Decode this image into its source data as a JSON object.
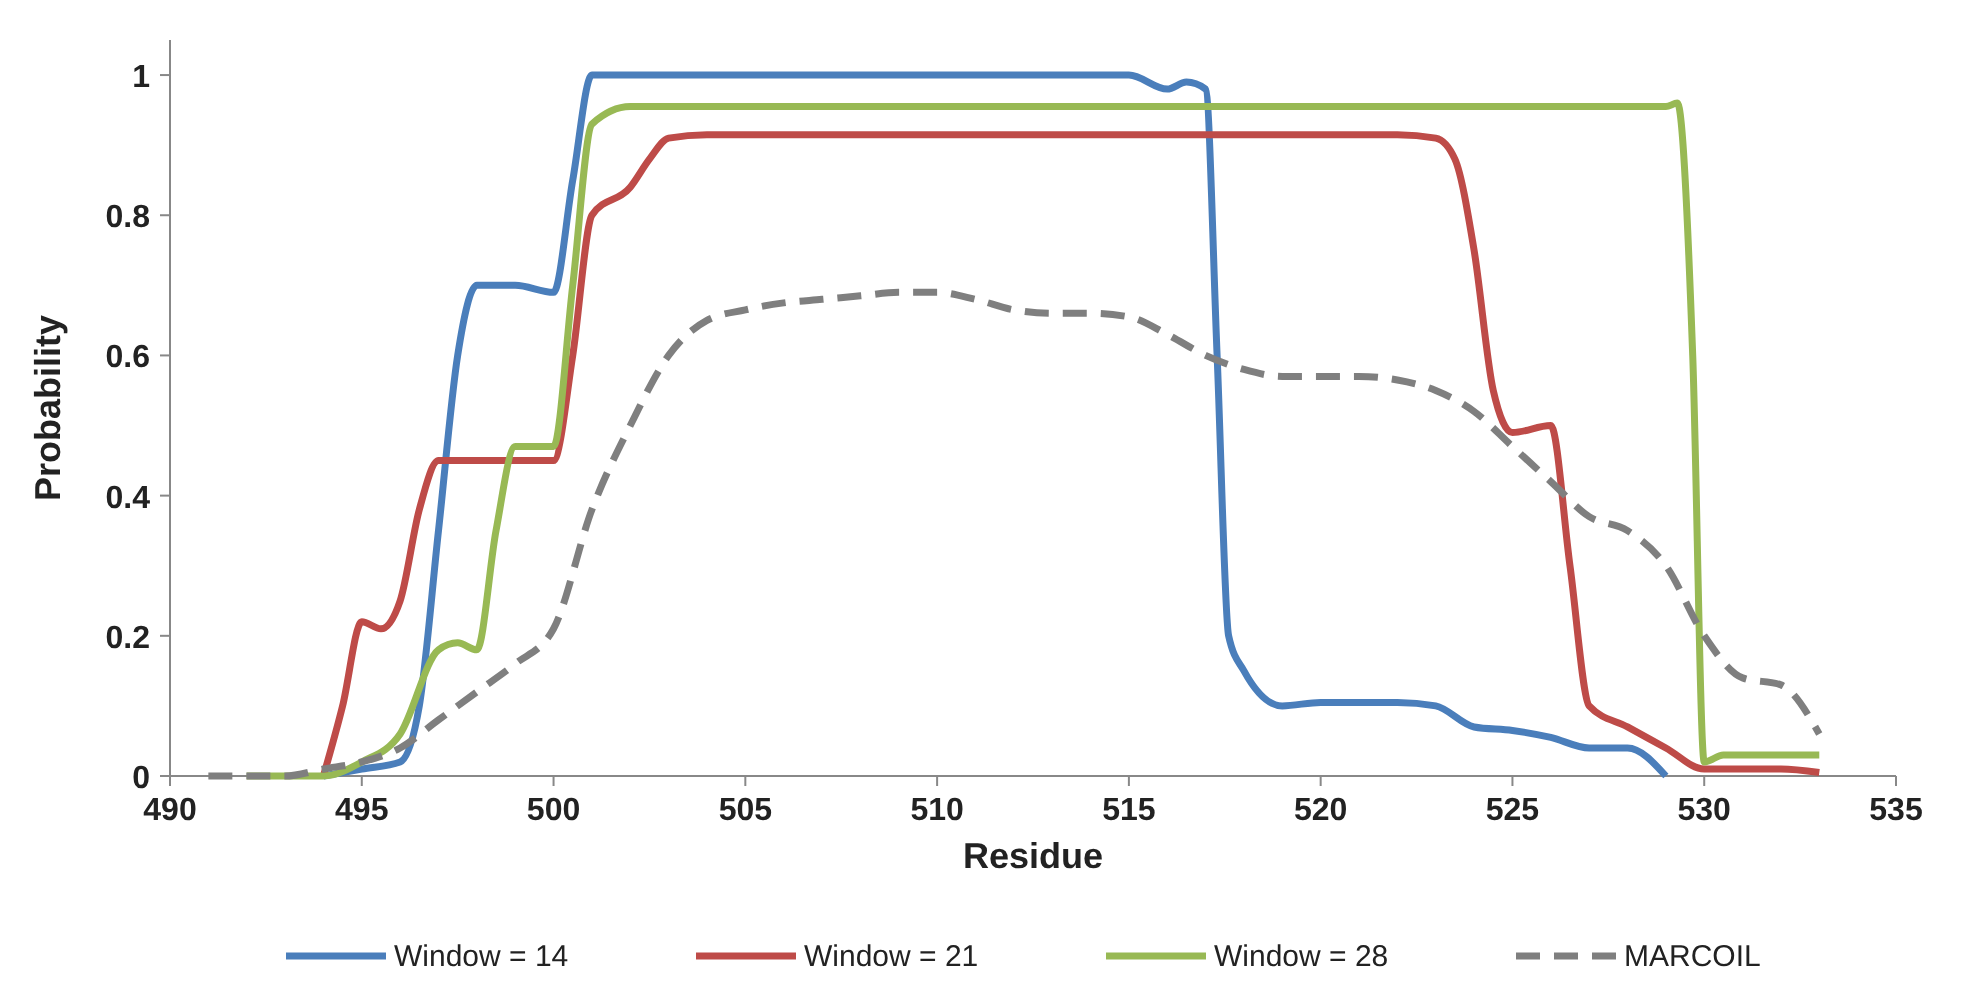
{
  "chart_data": {
    "type": "line",
    "xlabel": "Residue",
    "ylabel": "Probability",
    "xlim": [
      490,
      535
    ],
    "xticks": [
      490,
      495,
      500,
      505,
      510,
      515,
      520,
      525,
      530,
      535
    ],
    "ylim": [
      0,
      1.05
    ],
    "yticks": [
      0,
      0.2,
      0.4,
      0.6,
      0.8,
      1
    ],
    "grid": false,
    "legend": "bottom",
    "marker": "none",
    "series": [
      {
        "name": "Window = 14",
        "color": "#4a7ebb",
        "line_style": "solid",
        "x": [
          494,
          495,
          496,
          496.5,
          497,
          497.5,
          498,
          499,
          500,
          500.5,
          501,
          502,
          505,
          510,
          515,
          516,
          516.5,
          517,
          517.3,
          517.6,
          518,
          519,
          520,
          521,
          522,
          523,
          524,
          525,
          526,
          527,
          528,
          529
        ],
        "values": [
          0,
          0.01,
          0.02,
          0.1,
          0.35,
          0.6,
          0.7,
          0.7,
          0.69,
          0.85,
          1,
          1,
          1,
          1,
          1,
          0.98,
          0.99,
          0.98,
          0.6,
          0.2,
          0.15,
          0.1,
          0.105,
          0.105,
          0.105,
          0.1,
          0.07,
          0.065,
          0.055,
          0.04,
          0.04,
          0
        ]
      },
      {
        "name": "Window = 21",
        "color": "#be4b48",
        "line_style": "solid",
        "x": [
          494,
          494.5,
          495,
          495.5,
          496,
          496.5,
          497,
          498,
          499,
          500,
          500.5,
          501,
          502,
          502.5,
          503,
          504,
          510,
          522,
          523,
          523.5,
          524,
          524.5,
          525,
          526,
          526.5,
          527,
          528,
          529,
          530,
          531,
          532,
          533
        ],
        "values": [
          0,
          0.1,
          0.22,
          0.21,
          0.25,
          0.38,
          0.45,
          0.45,
          0.45,
          0.45,
          0.6,
          0.8,
          0.84,
          0.88,
          0.91,
          0.915,
          0.915,
          0.915,
          0.91,
          0.88,
          0.75,
          0.55,
          0.49,
          0.5,
          0.3,
          0.1,
          0.07,
          0.04,
          0.01,
          0.01,
          0.01,
          0.005
        ]
      },
      {
        "name": "Window = 28",
        "color": "#98b954",
        "line_style": "solid",
        "x": [
          492,
          494,
          495,
          496,
          497,
          497.5,
          498,
          498.5,
          499,
          500,
          500.5,
          501,
          502,
          510,
          520,
          529,
          529.3,
          529.7,
          530,
          530.5,
          531,
          533
        ],
        "values": [
          0,
          0,
          0.02,
          0.06,
          0.18,
          0.19,
          0.18,
          0.35,
          0.47,
          0.47,
          0.7,
          0.93,
          0.955,
          0.955,
          0.955,
          0.955,
          0.96,
          0.6,
          0.02,
          0.03,
          0.03,
          0.03
        ]
      },
      {
        "name": "MARCOIL",
        "color": "#7f7f7f",
        "line_style": "dashed",
        "x": [
          491,
          492,
          493,
          494,
          495,
          496,
          497,
          498,
          499,
          500,
          501,
          502,
          503,
          504,
          505,
          506,
          507,
          508,
          509,
          510,
          511,
          512,
          513,
          514,
          515,
          516,
          517,
          518,
          519,
          520,
          521,
          522,
          523,
          524,
          525,
          526,
          527,
          528,
          529,
          530,
          531,
          532,
          533
        ],
        "values": [
          0,
          0,
          0,
          0.01,
          0.02,
          0.04,
          0.08,
          0.12,
          0.16,
          0.21,
          0.38,
          0.5,
          0.6,
          0.65,
          0.665,
          0.675,
          0.68,
          0.685,
          0.69,
          0.69,
          0.68,
          0.665,
          0.66,
          0.66,
          0.655,
          0.63,
          0.6,
          0.58,
          0.57,
          0.57,
          0.57,
          0.565,
          0.55,
          0.52,
          0.47,
          0.42,
          0.37,
          0.35,
          0.3,
          0.2,
          0.14,
          0.13,
          0.06
        ]
      }
    ]
  }
}
